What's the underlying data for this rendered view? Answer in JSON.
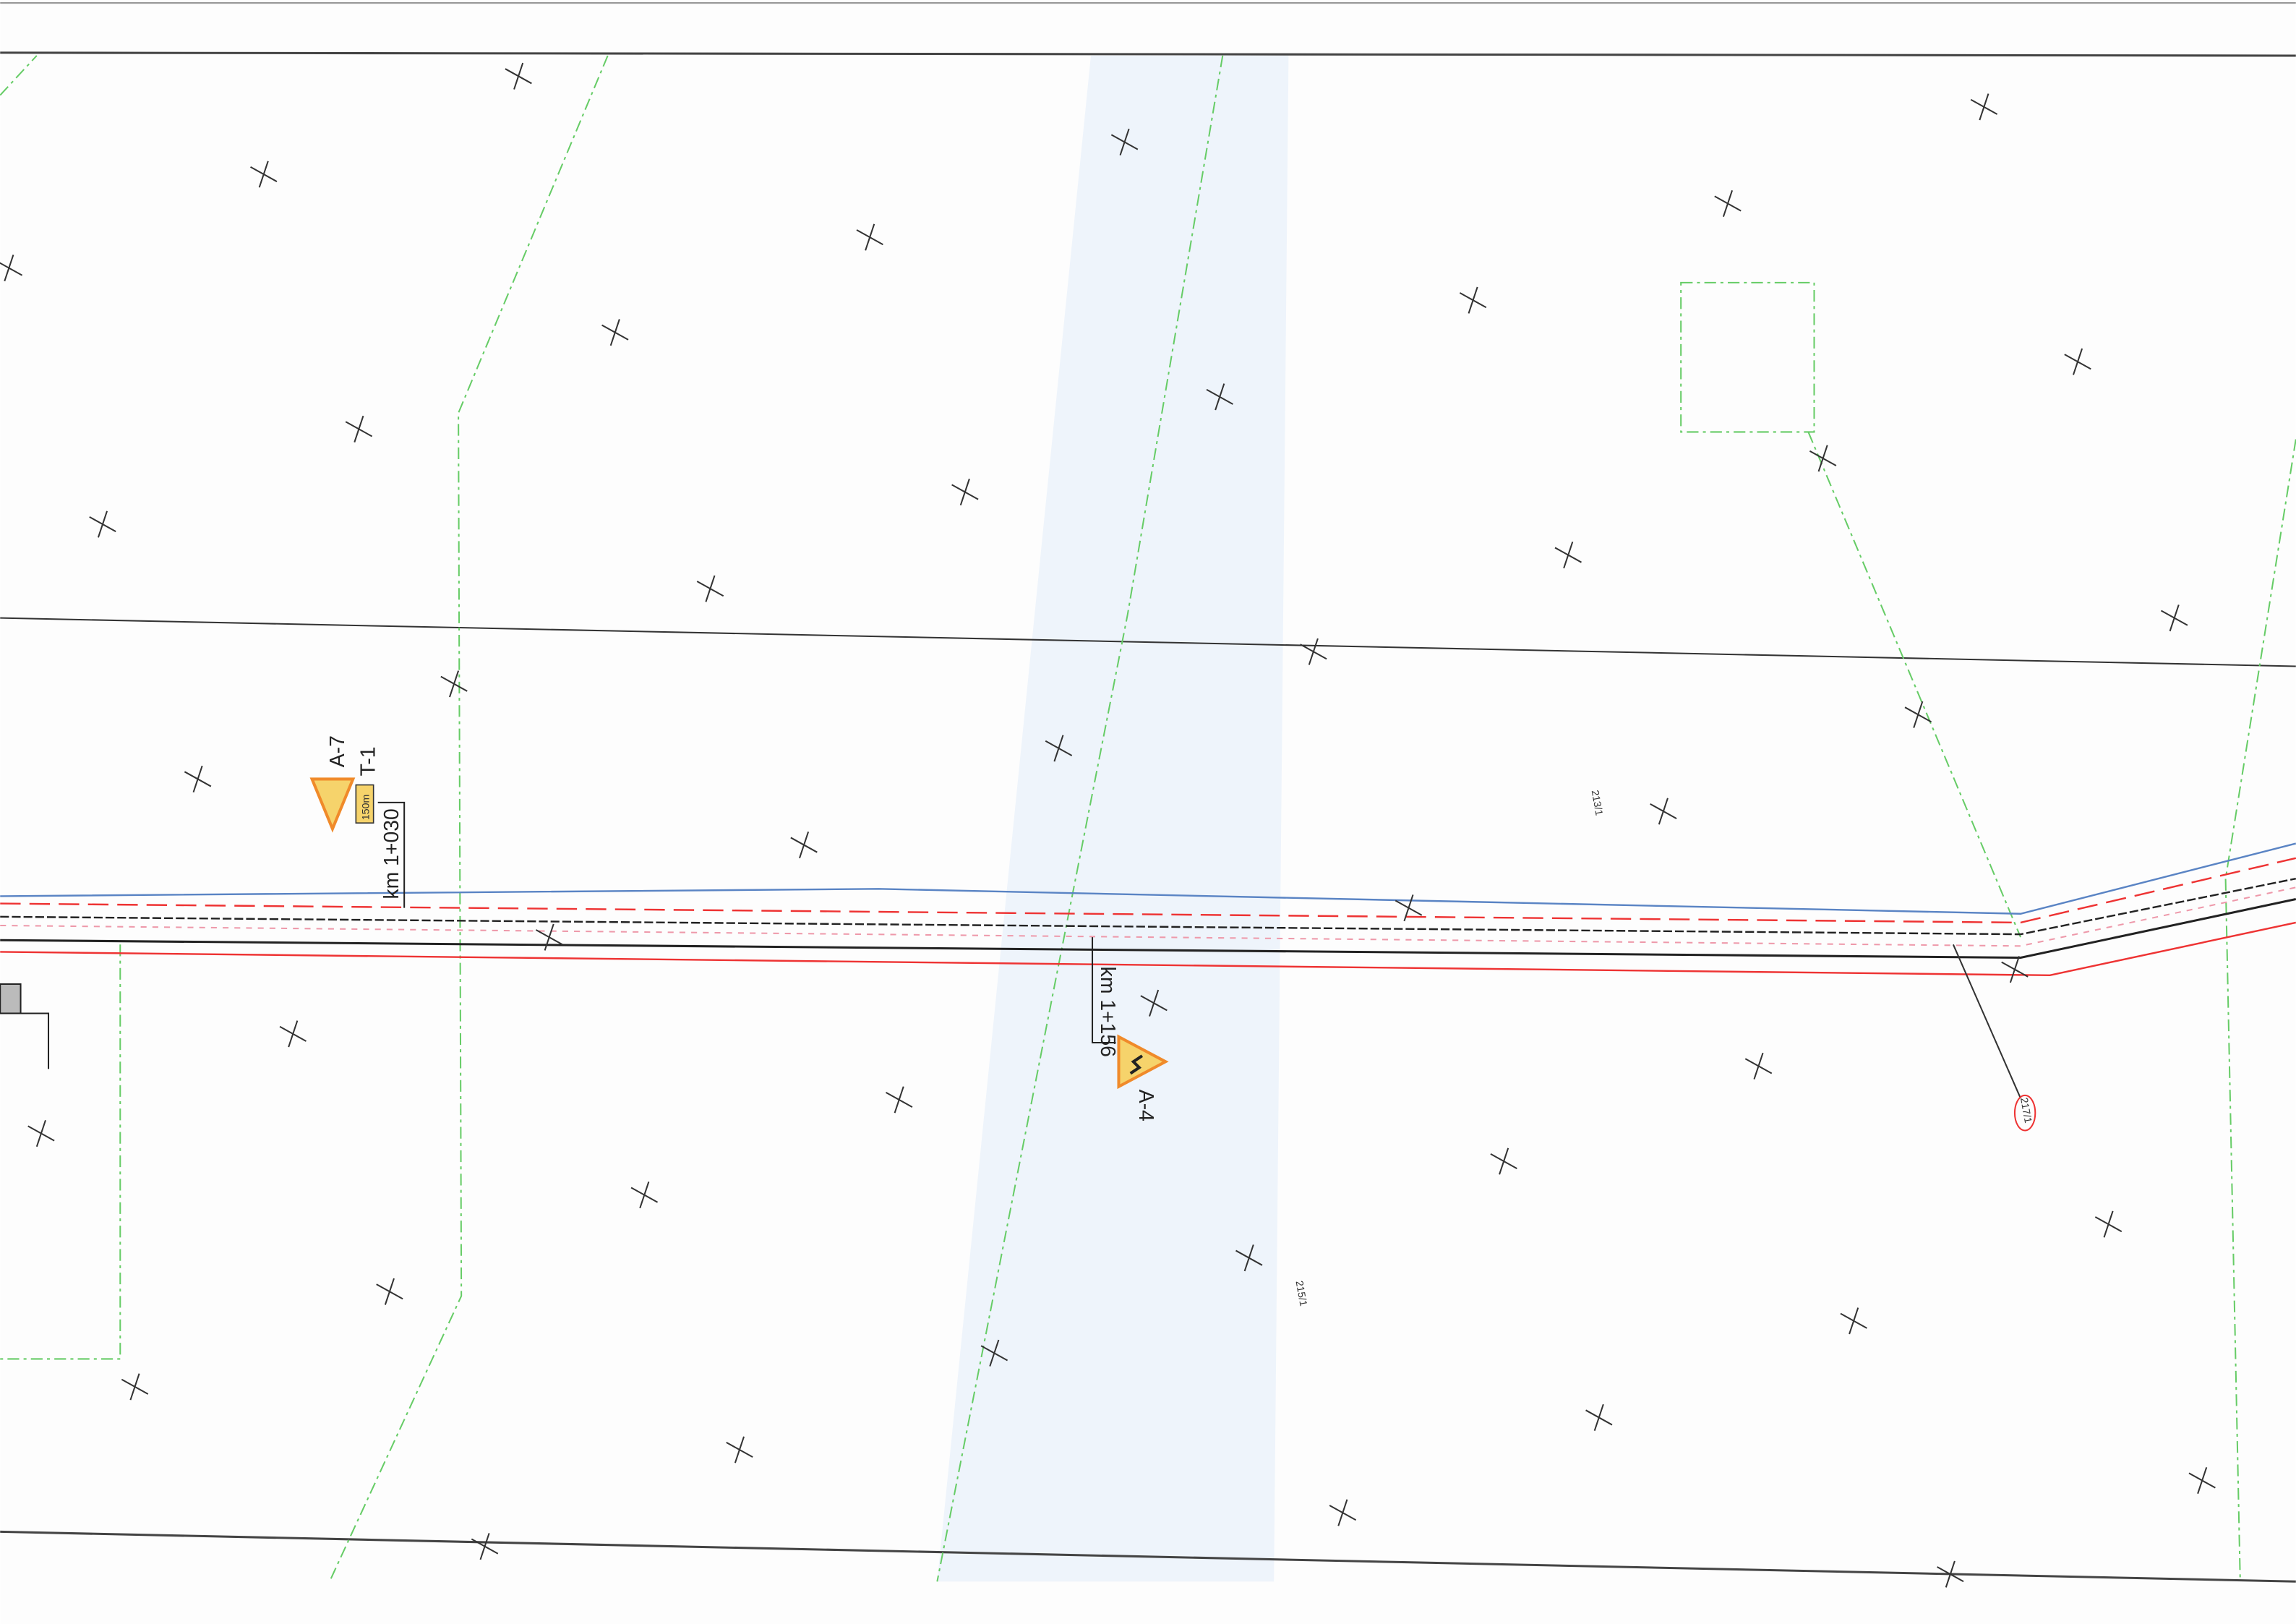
{
  "signs": [
    {
      "code": "A-7",
      "plate": "150m"
    },
    {
      "code": "T-1"
    },
    {
      "code": "A-4"
    }
  ],
  "chainages": [
    "km 1+030",
    "km 1+156"
  ],
  "parcels": [
    "213/1",
    "215/1",
    "217/1"
  ]
}
